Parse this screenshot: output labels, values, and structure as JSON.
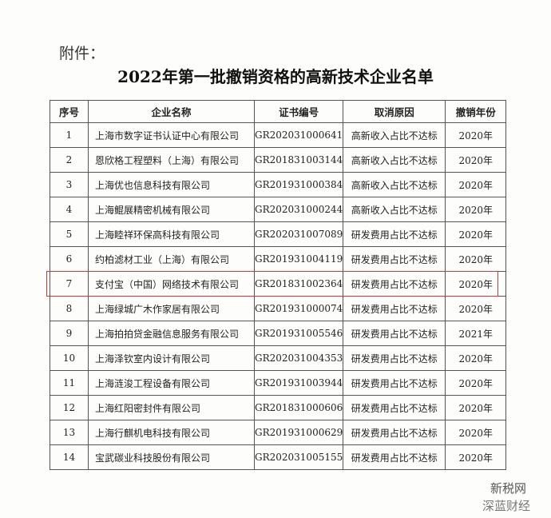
{
  "header": {
    "label": "附件：",
    "title": "2022年第一批撤销资格的高新技术企业名单"
  },
  "table": {
    "columns": [
      "序号",
      "企业名称",
      "证书编号",
      "取消原因",
      "撤销年份"
    ],
    "rows": [
      [
        "1",
        "上海市数字证书认证中心有限公司",
        "GR202031000641",
        "高新收入占比不达标",
        "2020年"
      ],
      [
        "2",
        "恩欣格工程塑料（上海）有限公司",
        "GR201831003144",
        "高新收入占比不达标",
        "2020年"
      ],
      [
        "3",
        "上海优也信息科技有限公司",
        "GR201931000384",
        "高新收入占比不达标",
        "2020年"
      ],
      [
        "4",
        "上海鲲展精密机械有限公司",
        "GR202031000244",
        "高新收入占比不达标",
        "2020年"
      ],
      [
        "5",
        "上海睦祥环保高科技有限公司",
        "GR202031007089",
        "研发费用占比不达标",
        "2020年"
      ],
      [
        "6",
        "约柏滤材工业（上海）有限公司",
        "GR201931004119",
        "研发费用占比不达标",
        "2020年"
      ],
      [
        "7",
        "支付宝（中国）网络技术有限公司",
        "GR201831002364",
        "研发费用占比不达标",
        "2020年"
      ],
      [
        "8",
        "上海绿城广木作家居有限公司",
        "GR201931000074",
        "研发费用占比不达标",
        "2020年"
      ],
      [
        "9",
        "上海拍拍贷金融信息服务有限公司",
        "GR201931005546",
        "研发费用占比不达标",
        "2021年"
      ],
      [
        "10",
        "上海泽钦室内设计有限公司",
        "GR202031004353",
        "研发费用占比不达标",
        "2020年"
      ],
      [
        "11",
        "上海涟浚工程设备有限公司",
        "GR201931003944",
        "研发费用占比不达标",
        "2020年"
      ],
      [
        "12",
        "上海红阳密封件有限公司",
        "GR201831000606",
        "研发费用占比不达标",
        "2020年"
      ],
      [
        "13",
        "上海行麒机电科技有限公司",
        "GR201931000629",
        "研发费用占比不达标",
        "2020年"
      ],
      [
        "14",
        "宝武碳业科技股份有限公司",
        "GR202031005155",
        "研发费用占比不达标",
        "2020年"
      ]
    ]
  },
  "watermark": {
    "line1": "新税网",
    "line2": "深蓝财经"
  }
}
